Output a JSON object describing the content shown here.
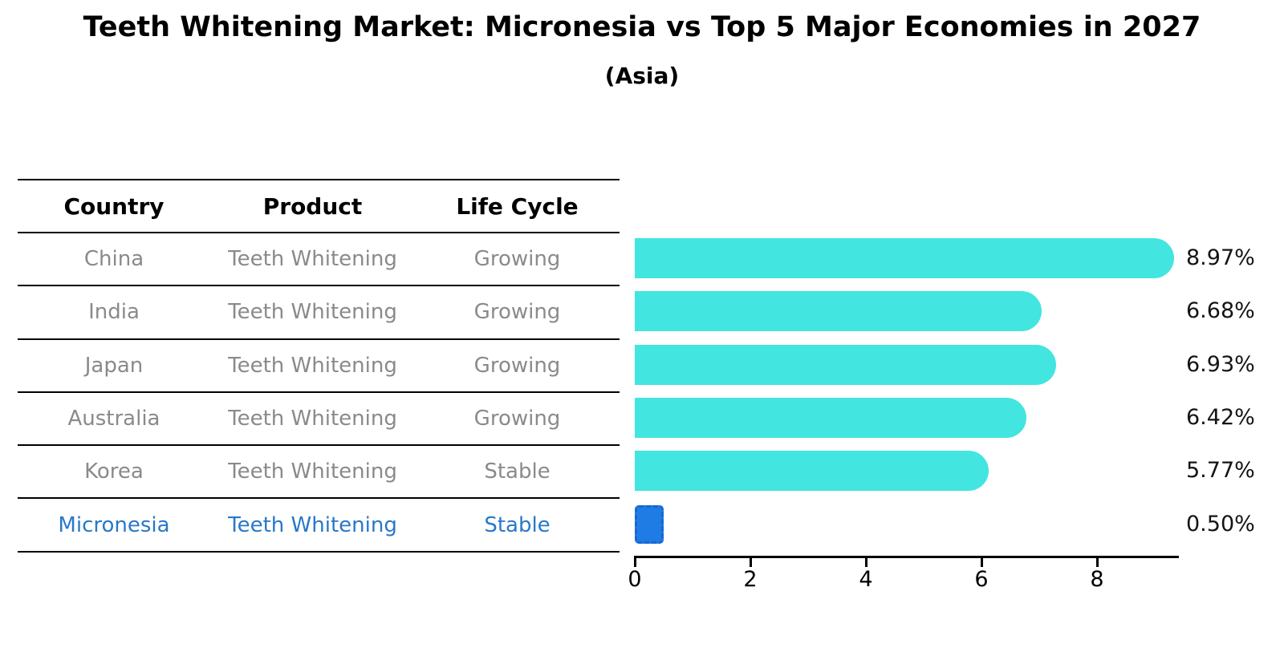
{
  "title": "Teeth Whitening Market: Micronesia vs Top 5 Major Economies in 2027",
  "subtitle": "(Asia)",
  "table": {
    "headers": {
      "country": "Country",
      "product": "Product",
      "life_cycle": "Life Cycle"
    },
    "rows": [
      {
        "country": "China",
        "product": "Teeth Whitening",
        "life_cycle": "Growing"
      },
      {
        "country": "India",
        "product": "Teeth Whitening",
        "life_cycle": "Growing"
      },
      {
        "country": "Japan",
        "product": "Teeth Whitening",
        "life_cycle": "Growing"
      },
      {
        "country": "Australia",
        "product": "Teeth Whitening",
        "life_cycle": "Growing"
      },
      {
        "country": "Korea",
        "product": "Teeth Whitening",
        "life_cycle": "Stable"
      },
      {
        "country": "Micronesia",
        "product": "Teeth Whitening",
        "life_cycle": "Stable"
      }
    ],
    "highlight_row": "Micronesia"
  },
  "chart_data": {
    "type": "bar",
    "orientation": "horizontal",
    "title": "Teeth Whitening Market: Micronesia vs Top 5 Major Economies in 2027 (Asia)",
    "categories": [
      "China",
      "India",
      "Japan",
      "Australia",
      "Korea",
      "Micronesia"
    ],
    "values": [
      8.97,
      6.68,
      6.93,
      6.42,
      5.77,
      0.5
    ],
    "value_labels": [
      "8.97%",
      "6.68%",
      "6.93%",
      "6.42%",
      "5.77%",
      "0.50%"
    ],
    "x_ticks": [
      "0",
      "2",
      "4",
      "6",
      "8"
    ],
    "xlim": [
      0,
      9.42
    ],
    "grid": false,
    "legend": "none",
    "bar_color": "#42E5E0",
    "highlight_index": 5,
    "highlight_color": "#1E7CE4",
    "highlight_border_color": "#1A66CE"
  },
  "colors": {
    "text_primary": "#000000",
    "text_muted": "#8A8A8A",
    "highlight_text": "#2878C8",
    "axis": "#000000",
    "background": "#FFFFFF"
  }
}
